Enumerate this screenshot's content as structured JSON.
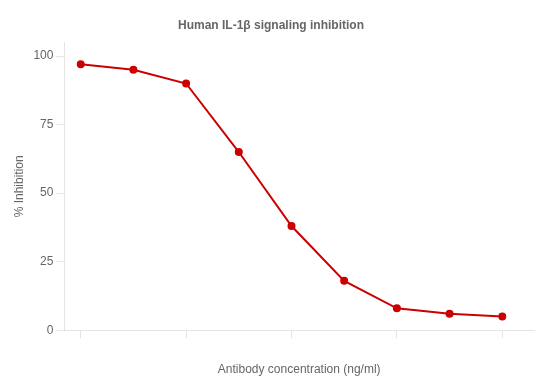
{
  "chart_data": {
    "type": "line",
    "title": "Human IL-1β signaling inhibition",
    "xlabel": "Antibody concentration (ng/ml)",
    "ylabel": "% Inhibition",
    "x": [
      0.1,
      0.316,
      1.0,
      3.16,
      10.0,
      31.6,
      100.0,
      316.0,
      1000.0
    ],
    "values": [
      97,
      95,
      90,
      65,
      38,
      18,
      8,
      6,
      5
    ],
    "color": "#cc0000",
    "marker": "circle",
    "log": "x",
    "xlim": [
      0.07,
      2000
    ],
    "xticks": [
      0.1,
      1.0,
      10.0,
      100.0,
      1000.0
    ],
    "ylim": [
      0,
      105
    ],
    "yticks": [
      0,
      25,
      50,
      75,
      100
    ],
    "tick_labels": "y",
    "grid": false
  }
}
